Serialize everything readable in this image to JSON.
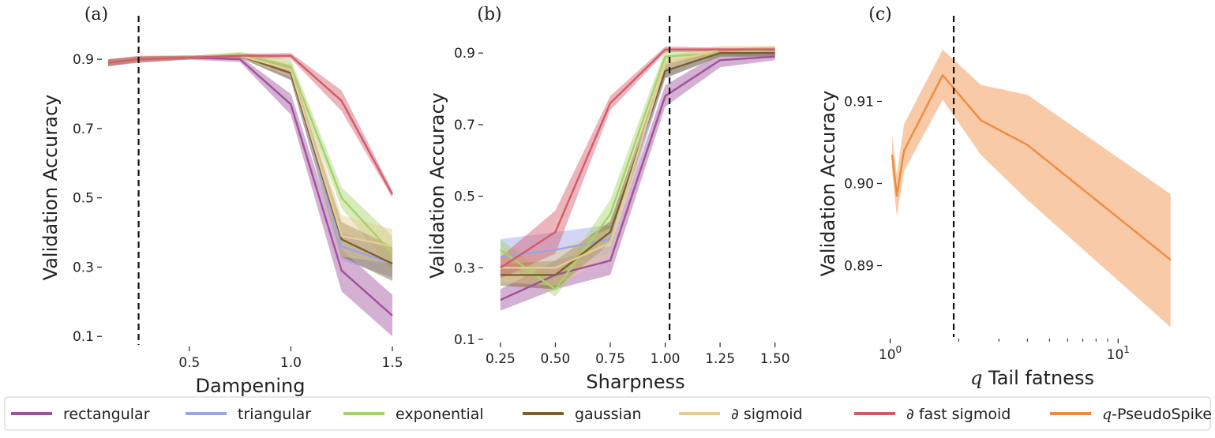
{
  "legend": {
    "items": [
      {
        "label": "rectangular",
        "color": "#a0509c"
      },
      {
        "label": "triangular",
        "color": "#9aa5e8"
      },
      {
        "label": "exponential",
        "color": "#a6d26b"
      },
      {
        "label": "gaussian",
        "color": "#7d5f2d"
      },
      {
        "label": "∂ sigmoid",
        "color": "#e6cd92"
      },
      {
        "label": "∂ fast sigmoid",
        "color": "#d45a6a"
      },
      {
        "label": "q-PseudoSpike",
        "color": "#f08a3e"
      }
    ]
  },
  "chart_data": [
    {
      "panel_label": "(a)",
      "type": "line",
      "xlabel": "Dampening",
      "ylabel": "Validation Accuracy",
      "x": [
        0.1,
        0.25,
        0.5,
        0.75,
        1.0,
        1.25,
        1.5
      ],
      "xlim": [
        0.1,
        1.5
      ],
      "ylim": [
        0.08,
        0.98
      ],
      "xticks": [
        0.5,
        1.0,
        1.5
      ],
      "xtick_labels": [
        "0.5",
        "1.0",
        "1.5"
      ],
      "yticks": [
        0.1,
        0.3,
        0.5,
        0.7,
        0.9
      ],
      "ytick_labels": [
        "0.1",
        "0.3",
        "0.5",
        "0.7",
        "0.9"
      ],
      "vline": 0.25,
      "series": [
        {
          "name": "rectangular",
          "color": "#a0509c",
          "values": [
            0.89,
            0.9,
            0.905,
            0.9,
            0.77,
            0.29,
            0.16
          ],
          "band": [
            0.01,
            0.01,
            0.006,
            0.008,
            0.03,
            0.06,
            0.06
          ]
        },
        {
          "name": "triangular",
          "color": "#9aa5e8",
          "values": [
            0.89,
            0.9,
            0.905,
            0.91,
            0.86,
            0.36,
            0.31
          ],
          "band": [
            0.01,
            0.008,
            0.005,
            0.006,
            0.02,
            0.04,
            0.04
          ]
        },
        {
          "name": "exponential",
          "color": "#a6d26b",
          "values": [
            0.89,
            0.9,
            0.905,
            0.915,
            0.88,
            0.5,
            0.34
          ],
          "band": [
            0.01,
            0.008,
            0.005,
            0.006,
            0.02,
            0.03,
            0.05
          ]
        },
        {
          "name": "gaussian",
          "color": "#7d5f2d",
          "values": [
            0.89,
            0.9,
            0.905,
            0.91,
            0.86,
            0.38,
            0.31
          ],
          "band": [
            0.01,
            0.008,
            0.005,
            0.006,
            0.02,
            0.05,
            0.05
          ]
        },
        {
          "name": "∂ sigmoid",
          "color": "#e6cd92",
          "values": [
            0.89,
            0.9,
            0.905,
            0.91,
            0.87,
            0.39,
            0.36
          ],
          "band": [
            0.01,
            0.008,
            0.005,
            0.006,
            0.02,
            0.06,
            0.05
          ]
        },
        {
          "name": "∂ fast sigmoid",
          "color": "#d45a6a",
          "values": [
            0.89,
            0.9,
            0.905,
            0.91,
            0.91,
            0.78,
            0.51
          ],
          "band": [
            0.01,
            0.008,
            0.005,
            0.006,
            0.008,
            0.03,
            0.01
          ]
        }
      ]
    },
    {
      "panel_label": "(b)",
      "type": "line",
      "xlabel": "Sharpness",
      "ylabel": "Validation Accuracy",
      "x": [
        0.25,
        0.5,
        0.75,
        1.0,
        1.25,
        1.5
      ],
      "xlim": [
        0.2,
        1.53
      ],
      "ylim": [
        0.1,
        0.96
      ],
      "xticks": [
        0.25,
        0.5,
        0.75,
        1.0,
        1.25,
        1.5
      ],
      "xtick_labels": [
        "0.25",
        "0.50",
        "0.75",
        "1.00",
        "1.25",
        "1.50"
      ],
      "yticks": [
        0.1,
        0.3,
        0.5,
        0.7,
        0.9
      ],
      "ytick_labels": [
        "0.1",
        "0.3",
        "0.5",
        "0.7",
        "0.9"
      ],
      "vline": 1.02,
      "series": [
        {
          "name": "rectangular",
          "color": "#a0509c",
          "values": [
            0.21,
            0.28,
            0.32,
            0.78,
            0.88,
            0.89
          ],
          "band": [
            0.03,
            0.04,
            0.04,
            0.03,
            0.02,
            0.01
          ]
        },
        {
          "name": "triangular",
          "color": "#9aa5e8",
          "values": [
            0.33,
            0.35,
            0.38,
            0.85,
            0.9,
            0.9
          ],
          "band": [
            0.05,
            0.05,
            0.04,
            0.02,
            0.01,
            0.01
          ]
        },
        {
          "name": "exponential",
          "color": "#a6d26b",
          "values": [
            0.35,
            0.24,
            0.45,
            0.89,
            0.9,
            0.91
          ],
          "band": [
            0.03,
            0.02,
            0.04,
            0.02,
            0.01,
            0.01
          ]
        },
        {
          "name": "gaussian",
          "color": "#7d5f2d",
          "values": [
            0.28,
            0.28,
            0.4,
            0.85,
            0.9,
            0.9
          ],
          "band": [
            0.03,
            0.04,
            0.03,
            0.02,
            0.01,
            0.01
          ]
        },
        {
          "name": "∂ sigmoid",
          "color": "#e6cd92",
          "values": [
            0.3,
            0.3,
            0.37,
            0.87,
            0.91,
            0.91
          ],
          "band": [
            0.04,
            0.05,
            0.04,
            0.02,
            0.01,
            0.01
          ]
        },
        {
          "name": "∂ fast sigmoid",
          "color": "#d45a6a",
          "values": [
            0.3,
            0.4,
            0.76,
            0.91,
            0.91,
            0.91
          ],
          "band": [
            0.03,
            0.06,
            0.02,
            0.008,
            0.005,
            0.005
          ]
        }
      ]
    },
    {
      "panel_label": "(c)",
      "type": "line",
      "xlabel": "q Tail fatness",
      "xlabel_parts": {
        "variable": "q",
        "rest": " Tail fatness"
      },
      "ylabel": "Validation Accuracy",
      "x_scale": "log",
      "x": [
        1.02,
        1.07,
        1.15,
        1.7,
        2.5,
        4.0,
        17.0
      ],
      "xlim": [
        0.98,
        18.0
      ],
      "ylim": [
        0.8815,
        0.9185
      ],
      "xticks": [
        1,
        10
      ],
      "xtick_labels": [
        "10⁰",
        "10¹"
      ],
      "xtick_parts": [
        {
          "base": "10",
          "exp": "0"
        },
        {
          "base": "10",
          "exp": "1"
        }
      ],
      "yticks": [
        0.89,
        0.9,
        0.91
      ],
      "ytick_labels": [
        "0.89",
        "0.90",
        "0.91"
      ],
      "vline": 1.9,
      "series": [
        {
          "name": "q-PseudoSpike",
          "color": "#f08a3e",
          "values": [
            0.9035,
            0.8985,
            0.904,
            0.9132,
            0.9077,
            0.9047,
            0.8907
          ],
          "band_low": [
            0.9015,
            0.896,
            0.9015,
            0.9102,
            0.9035,
            0.898,
            0.8825
          ],
          "band_high": [
            0.906,
            0.901,
            0.9072,
            0.9163,
            0.912,
            0.9108,
            0.8987
          ]
        }
      ]
    }
  ]
}
